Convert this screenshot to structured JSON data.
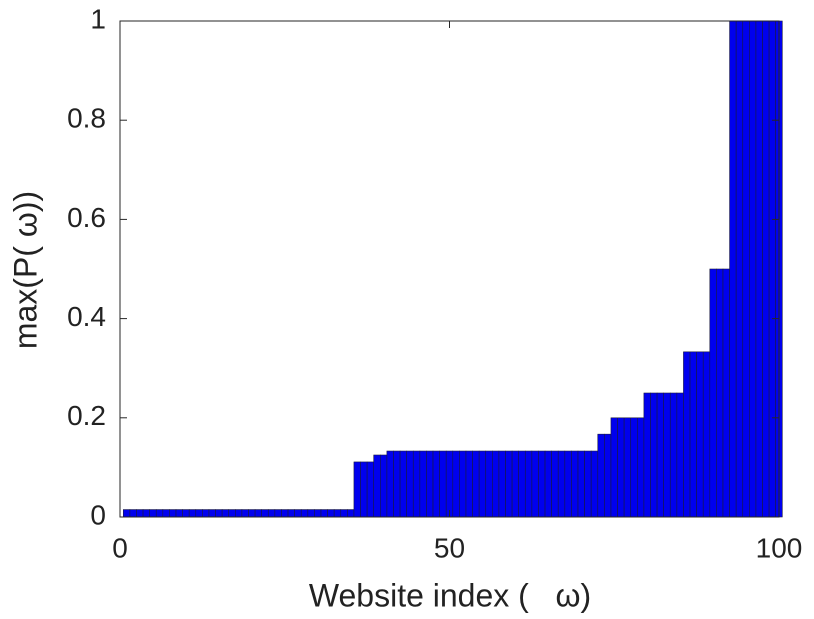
{
  "chart_data": {
    "type": "bar",
    "xlabel": "Website index (   ω)",
    "ylabel": "max(P( ω))",
    "x": [
      1,
      2,
      3,
      4,
      5,
      6,
      7,
      8,
      9,
      10,
      11,
      12,
      13,
      14,
      15,
      16,
      17,
      18,
      19,
      20,
      21,
      22,
      23,
      24,
      25,
      26,
      27,
      28,
      29,
      30,
      31,
      32,
      33,
      34,
      35,
      36,
      37,
      38,
      39,
      40,
      41,
      42,
      43,
      44,
      45,
      46,
      47,
      48,
      49,
      50,
      51,
      52,
      53,
      54,
      55,
      56,
      57,
      58,
      59,
      60,
      61,
      62,
      63,
      64,
      65,
      66,
      67,
      68,
      69,
      70,
      71,
      72,
      73,
      74,
      75,
      76,
      77,
      78,
      79,
      80,
      81,
      82,
      83,
      84,
      85,
      86,
      87,
      88,
      89,
      90,
      91,
      92,
      93,
      94,
      95,
      96,
      97,
      98,
      99,
      100
    ],
    "values": [
      0.015,
      0.015,
      0.015,
      0.015,
      0.015,
      0.015,
      0.015,
      0.015,
      0.015,
      0.015,
      0.015,
      0.015,
      0.015,
      0.015,
      0.015,
      0.015,
      0.015,
      0.015,
      0.015,
      0.015,
      0.015,
      0.015,
      0.015,
      0.015,
      0.015,
      0.015,
      0.015,
      0.015,
      0.015,
      0.015,
      0.015,
      0.015,
      0.015,
      0.015,
      0.015,
      0.111,
      0.111,
      0.111,
      0.125,
      0.125,
      0.133,
      0.133,
      0.133,
      0.133,
      0.133,
      0.133,
      0.133,
      0.133,
      0.133,
      0.133,
      0.133,
      0.133,
      0.133,
      0.133,
      0.133,
      0.133,
      0.133,
      0.133,
      0.133,
      0.133,
      0.133,
      0.133,
      0.133,
      0.133,
      0.133,
      0.133,
      0.133,
      0.133,
      0.133,
      0.133,
      0.133,
      0.133,
      0.167,
      0.167,
      0.2,
      0.2,
      0.2,
      0.2,
      0.2,
      0.25,
      0.25,
      0.25,
      0.25,
      0.25,
      0.25,
      0.333,
      0.333,
      0.333,
      0.333,
      0.5,
      0.5,
      0.5,
      1,
      1,
      1,
      1,
      1,
      1,
      1,
      1
    ],
    "color": "#0000ee",
    "xlim": [
      0,
      100
    ],
    "xticks": [
      0,
      50,
      100
    ],
    "ylim": [
      0,
      1
    ],
    "yticks": [
      0,
      0.2,
      0.4,
      0.6,
      0.8,
      1
    ],
    "grid": false
  }
}
